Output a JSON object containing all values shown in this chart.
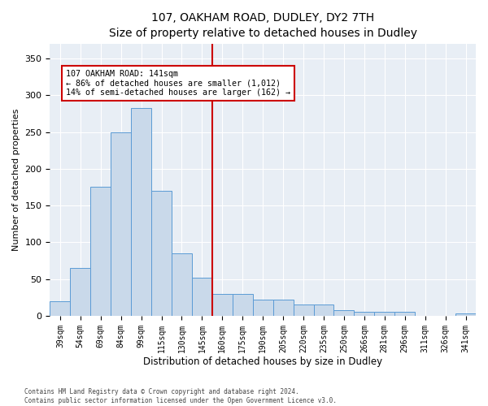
{
  "title": "107, OAKHAM ROAD, DUDLEY, DY2 7TH",
  "subtitle": "Size of property relative to detached houses in Dudley",
  "xlabel": "Distribution of detached houses by size in Dudley",
  "ylabel": "Number of detached properties",
  "bar_labels": [
    "39sqm",
    "54sqm",
    "69sqm",
    "84sqm",
    "99sqm",
    "115sqm",
    "130sqm",
    "145sqm",
    "160sqm",
    "175sqm",
    "190sqm",
    "205sqm",
    "220sqm",
    "235sqm",
    "250sqm",
    "266sqm",
    "281sqm",
    "296sqm",
    "311sqm",
    "326sqm",
    "341sqm"
  ],
  "bar_values": [
    20,
    65,
    175,
    250,
    283,
    170,
    85,
    52,
    30,
    30,
    22,
    22,
    15,
    15,
    8,
    5,
    5,
    5,
    0,
    0,
    3
  ],
  "bar_color": "#c9d9ea",
  "bar_edgecolor": "#5b9bd5",
  "vline_x_idx": 7.5,
  "vline_color": "#cc0000",
  "annotation_text": "107 OAKHAM ROAD: 141sqm\n← 86% of detached houses are smaller (1,012)\n14% of semi-detached houses are larger (162) →",
  "annotation_box_facecolor": "#ffffff",
  "annotation_box_edgecolor": "#cc0000",
  "ylim": [
    0,
    370
  ],
  "yticks": [
    0,
    50,
    100,
    150,
    200,
    250,
    300,
    350
  ],
  "background_color": "#e8eef5",
  "title_fontsize": 10,
  "subtitle_fontsize": 9,
  "footnote1": "Contains HM Land Registry data © Crown copyright and database right 2024.",
  "footnote2": "Contains public sector information licensed under the Open Government Licence v3.0."
}
